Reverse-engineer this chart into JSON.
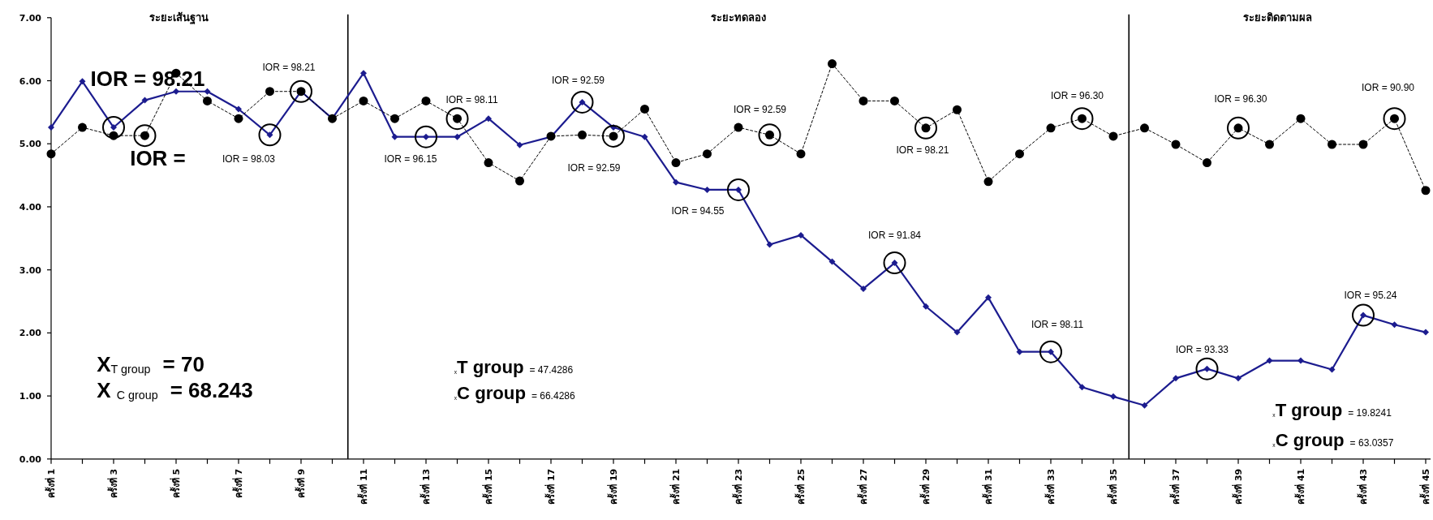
{
  "chart_data": {
    "type": "line",
    "x": [
      1,
      2,
      3,
      4,
      5,
      6,
      7,
      8,
      9,
      10,
      11,
      12,
      13,
      14,
      15,
      16,
      17,
      18,
      19,
      20,
      21,
      22,
      23,
      24,
      25,
      26,
      27,
      28,
      29,
      30,
      31,
      32,
      33,
      34,
      35,
      36,
      37,
      38,
      39,
      40,
      41,
      42,
      43,
      44,
      45
    ],
    "xlim": [
      1,
      45
    ],
    "xticks": [
      {
        "value": 1,
        "label": "ครั้งที่ 1"
      },
      {
        "value": 2,
        "label": null
      },
      {
        "value": 3,
        "label": "ครั้งที่ 3"
      },
      {
        "value": 4,
        "label": null
      },
      {
        "value": 5,
        "label": "ครั้งที่ 5"
      },
      {
        "value": 6,
        "label": null
      },
      {
        "value": 7,
        "label": "ครั้งที่ 7"
      },
      {
        "value": 8,
        "label": null
      },
      {
        "value": 9,
        "label": "ครั้งที่ 9"
      },
      {
        "value": 10,
        "label": null
      },
      {
        "value": 11,
        "label": "ครั้งที่ 11"
      },
      {
        "value": 12,
        "label": null
      },
      {
        "value": 13,
        "label": "ครั้งที่ 13"
      },
      {
        "value": 14,
        "label": null
      },
      {
        "value": 15,
        "label": "ครั้งที่ 15"
      },
      {
        "value": 16,
        "label": null
      },
      {
        "value": 17,
        "label": "ครั้งที่ 17"
      },
      {
        "value": 18,
        "label": null
      },
      {
        "value": 19,
        "label": "ครั้งที่ 19"
      },
      {
        "value": 20,
        "label": null
      },
      {
        "value": 21,
        "label": "ครั้งที่ 21"
      },
      {
        "value": 22,
        "label": null
      },
      {
        "value": 23,
        "label": "ครั้งที่ 23"
      },
      {
        "value": 24,
        "label": null
      },
      {
        "value": 25,
        "label": "ครั้งที่ 25"
      },
      {
        "value": 26,
        "label": null
      },
      {
        "value": 27,
        "label": "ครั้งที่ 27"
      },
      {
        "value": 28,
        "label": null
      },
      {
        "value": 29,
        "label": "ครั้งที่ 29"
      },
      {
        "value": 30,
        "label": null
      },
      {
        "value": 31,
        "label": "ครั้งที่ 31"
      },
      {
        "value": 32,
        "label": null
      },
      {
        "value": 33,
        "label": "ครั้งที่ 33"
      },
      {
        "value": 34,
        "label": null
      },
      {
        "value": 35,
        "label": "ครั้งที่ 35"
      },
      {
        "value": 36,
        "label": null
      },
      {
        "value": 37,
        "label": "ครั้งที่ 37"
      },
      {
        "value": 38,
        "label": null
      },
      {
        "value": 39,
        "label": "ครั้งที่ 39"
      },
      {
        "value": 40,
        "label": null
      },
      {
        "value": 41,
        "label": "ครั้งที่ 41"
      },
      {
        "value": 42,
        "label": null
      },
      {
        "value": 43,
        "label": "ครั้งที่ 43"
      },
      {
        "value": 44,
        "label": null
      },
      {
        "value": 45,
        "label": "ครั้งที่ 45"
      }
    ],
    "ylim": [
      0,
      7
    ],
    "yticks": [
      {
        "value": 0,
        "label": "0.00"
      },
      {
        "value": 1,
        "label": "1.00"
      },
      {
        "value": 2,
        "label": "2.00"
      },
      {
        "value": 3,
        "label": "3.00"
      },
      {
        "value": 4,
        "label": "4.00"
      },
      {
        "value": 5,
        "label": "5.00"
      },
      {
        "value": 6,
        "label": "6.00"
      },
      {
        "value": 7,
        "label": "7.00"
      }
    ],
    "series": [
      {
        "color": "#1c1c8f",
        "marker": "diamond",
        "line_style": "solid",
        "values": [
          5.26,
          5.99,
          5.26,
          5.69,
          5.83,
          5.83,
          5.55,
          5.14,
          5.83,
          5.4,
          6.12,
          5.11,
          5.11,
          5.11,
          5.4,
          4.98,
          5.11,
          5.66,
          5.26,
          5.11,
          4.39,
          4.27,
          4.27,
          3.4,
          3.55,
          3.13,
          2.7,
          3.11,
          2.42,
          2.01,
          2.56,
          1.7,
          1.7,
          1.14,
          0.99,
          0.85,
          1.28,
          1.43,
          1.28,
          1.56,
          1.56,
          1.42,
          2.28,
          2.13,
          2.01
        ]
      },
      {
        "color": "#000000",
        "marker": "circle",
        "line_style": "dashed",
        "values": [
          4.84,
          5.26,
          5.13,
          5.13,
          6.12,
          5.68,
          5.4,
          5.83,
          5.83,
          5.4,
          5.68,
          5.4,
          5.68,
          5.4,
          4.7,
          4.41,
          5.12,
          5.14,
          5.12,
          5.55,
          4.7,
          4.84,
          5.26,
          5.14,
          4.84,
          6.27,
          5.68,
          5.68,
          5.25,
          5.54,
          4.4,
          4.84,
          5.25,
          5.4,
          5.12,
          5.25,
          4.99,
          4.7,
          5.25,
          4.99,
          5.4,
          4.99,
          4.99,
          5.4,
          4.26
        ]
      }
    ],
    "ref_lines": [
      {
        "axis": "x",
        "value": 10.5,
        "color": "#000000"
      },
      {
        "axis": "x",
        "value": 35.5,
        "color": "#000000"
      }
    ],
    "annotations": [
      "ระยะเส้นฐาน",
      "ระยะทดลอง",
      "ระยะติดตามผล",
      {
        "text": "IOR = 98.21",
        "x": 3,
        "y": 5.26
      },
      {
        "text": "IOR =",
        "x": 4,
        "y": 5.13
      },
      {
        "text": "IOR = 98.03",
        "x": 8,
        "y": 5.14
      },
      {
        "text": "IOR = 98.21",
        "x": 9,
        "y": 5.83
      },
      {
        "text": "IOR = 96.15",
        "x": 13,
        "y": 5.11
      },
      {
        "text": "IOR = 98.11",
        "x": 14,
        "y": 5.4
      },
      {
        "text": "IOR = 92.59",
        "x": 18,
        "y": 5.66
      },
      {
        "text": "IOR = 92.59",
        "x": 19,
        "y": 5.12
      },
      {
        "text": "IOR = 94.55",
        "x": 23,
        "y": 4.27
      },
      {
        "text": "IOR = 92.59",
        "x": 24,
        "y": 5.14
      },
      {
        "text": "IOR = 91.84",
        "x": 28,
        "y": 3.11
      },
      {
        "text": "IOR = 98.21",
        "x": 29,
        "y": 5.25
      },
      {
        "text": "IOR = 98.11",
        "x": 33,
        "y": 1.7
      },
      {
        "text": "IOR = 96.30",
        "x": 34,
        "y": 5.4
      },
      {
        "text": "IOR = 93.33",
        "x": 38,
        "y": 1.43
      },
      {
        "text": "IOR = 96.30",
        "x": 39,
        "y": 5.25
      },
      {
        "text": "IOR = 95.24",
        "x": 43,
        "y": 2.28
      },
      {
        "text": "IOR = 90.90",
        "x": 44,
        "y": 5.4
      },
      "X$_{T group}$ = 70",
      "X $_{C group}$ = 68.243",
      "$_{x}$**T group** = 47.4286",
      "$_{x}$**C group** = 66.4286",
      "$_{x}$**T group** = 19.8241",
      "$_{x}$**C group** = 63.0357"
    ]
  }
}
